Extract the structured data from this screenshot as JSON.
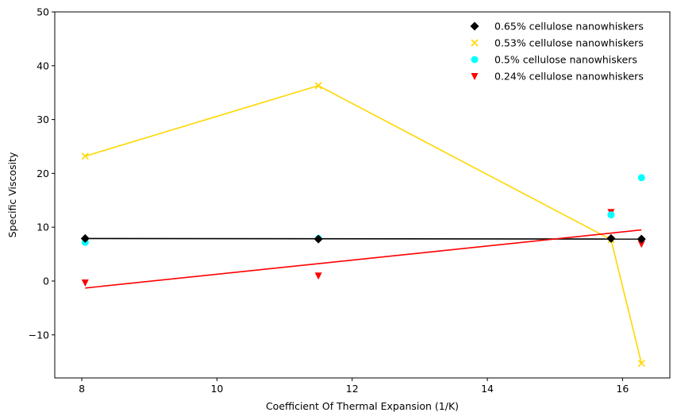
{
  "chart_data": {
    "type": "scatter",
    "xlabel": "Coefficient Of Thermal Expansion (1/K)",
    "ylabel": "Specific Viscosity",
    "xlim": [
      7.6,
      16.7
    ],
    "ylim": [
      -18,
      50
    ],
    "xticks": [
      8,
      10,
      12,
      14,
      16
    ],
    "yticks": [
      -10,
      0,
      10,
      20,
      30,
      40,
      50
    ],
    "grid": false,
    "legend_position": "top-right",
    "series": [
      {
        "name": "0.65% cellulose nanowhiskers",
        "marker": "diamond",
        "color": "#000000",
        "x": [
          8.05,
          11.5,
          15.83,
          16.28
        ],
        "y": [
          7.9,
          7.8,
          7.9,
          7.8
        ],
        "fit": {
          "x": [
            8.05,
            16.28
          ],
          "y": [
            7.9,
            7.8
          ]
        }
      },
      {
        "name": "0.53% cellulose nanowhiskers",
        "marker": "x",
        "color": "#ffd700",
        "x": [
          8.05,
          11.5,
          15.83,
          16.28
        ],
        "y": [
          23.2,
          36.3,
          7.7,
          -15.3
        ],
        "fit": {
          "x": [
            8.05,
            11.5,
            15.83,
            16.28
          ],
          "y": [
            23.2,
            36.3,
            7.7,
            -15.3
          ]
        }
      },
      {
        "name": "0.5% cellulose nanowhiskers",
        "marker": "circle",
        "color": "#00ffff",
        "x": [
          8.05,
          11.5,
          15.83,
          16.28
        ],
        "y": [
          7.2,
          7.9,
          12.3,
          19.2
        ]
      },
      {
        "name": "0.24% cellulose nanowhiskers",
        "marker": "triangle-down",
        "color": "#ff0000",
        "x": [
          8.05,
          11.5,
          15.83,
          16.28
        ],
        "y": [
          -0.3,
          1.0,
          12.8,
          6.9
        ],
        "fit": {
          "x": [
            8.05,
            16.28
          ],
          "y": [
            -1.3,
            9.5
          ]
        }
      }
    ]
  }
}
